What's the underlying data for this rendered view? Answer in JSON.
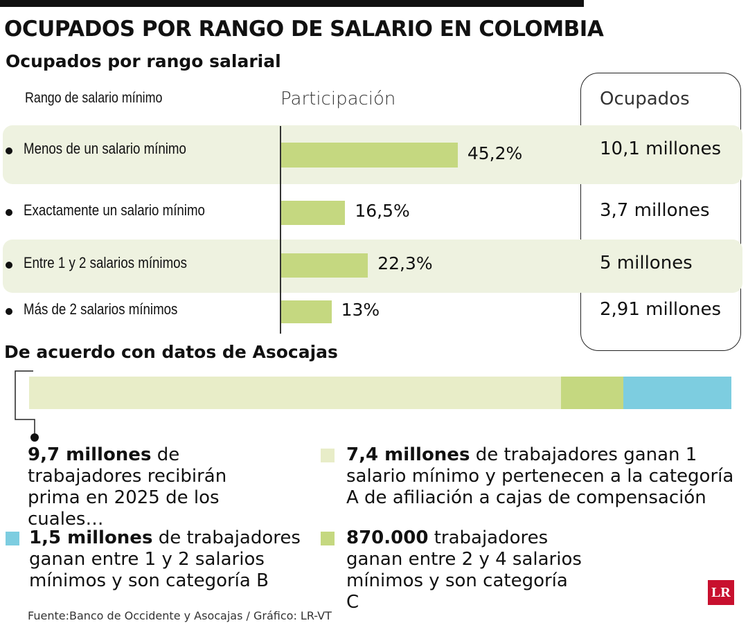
{
  "title": "OCUPADOS POR RANGO DE SALARIO EN COLOMBIA",
  "chart_data": [
    {
      "type": "hbar",
      "title": "Ocupados por rango salarial",
      "category_header": "Rango de salario mínimo",
      "value_header": "Participación",
      "extra_header": "Ocupados",
      "categories": [
        "Menos de un salario mínimo",
        "Exactamente un salario mínimo",
        "Entre 1 y 2 salarios mínimos",
        "Más de 2 salarios mínimos"
      ],
      "values": [
        45.2,
        16.5,
        22.3,
        13
      ],
      "value_labels": [
        "45,2%",
        "16,5%",
        "22,3%",
        "13%"
      ],
      "extra_labels": [
        "10,1 millones",
        "3,7 millones",
        "5 millones",
        "2,91 millones"
      ],
      "color": "#c5d880"
    },
    {
      "type": "stacked-bar",
      "title": "De acuerdo con datos de Asocajas",
      "total_label": "9,7 millones",
      "total_text": "de trabajadores recibirán prima en 2025 de los cuales…",
      "series": [
        {
          "name": "de trabajadores ganan 1 salario mínimo y pertenecen a la categoría A de afiliación a cajas de compensación",
          "color": "#e8edc8",
          "values": [
            7.4
          ],
          "value_labels": [
            "7,4 millones"
          ]
        },
        {
          "name": "trabajadores ganan entre 2 y 4 salarios mínimos y son categoría C",
          "color": "#c5d880",
          "values": [
            0.87
          ],
          "value_labels": [
            "870.000"
          ]
        },
        {
          "name": "de trabajadores ganan entre 1 y 2 salarios mínimos y son categoría B",
          "color": "#7dcde0",
          "values": [
            1.5
          ],
          "value_labels": [
            "1,5 millones"
          ]
        }
      ]
    }
  ],
  "source": "Fuente:Banco de Occidente y Asocajas / Gráfico: LR-VT",
  "logo": "LR"
}
